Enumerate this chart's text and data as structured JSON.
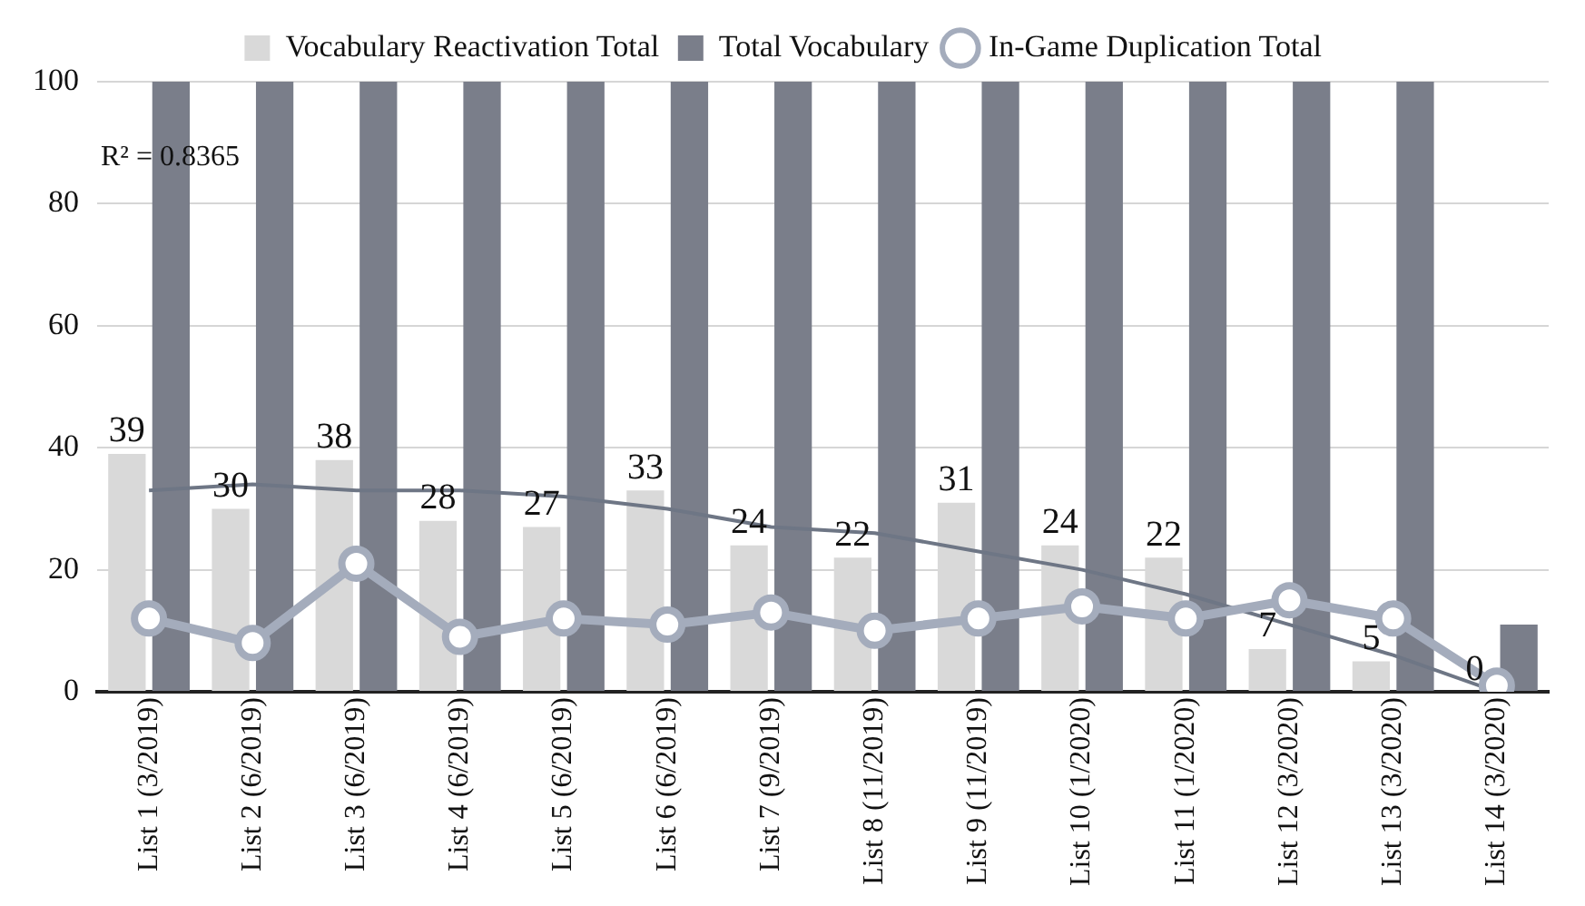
{
  "chart_data": {
    "type": "bar",
    "categories": [
      "List 1 (3/2019)",
      "List 2 (6/2019)",
      "List 3 (6/2019)",
      "List 4 (6/2019)",
      "List 5 (6/2019)",
      "List 6 (6/2019)",
      "List 7 (9/2019)",
      "List 8 (11/2019)",
      "List 9 (11/2019)",
      "List 10 (1/2020)",
      "List 11 (1/2020)",
      "List 12 (3/2020)",
      "List 13 (3/2020)",
      "List 14 (3/2020)"
    ],
    "series": [
      {
        "name": "Vocabulary Reactivation Total",
        "color": "#d9d9d9",
        "values": [
          39,
          30,
          38,
          28,
          27,
          33,
          24,
          22,
          31,
          24,
          22,
          7,
          5,
          0
        ],
        "value_labels": [
          "39",
          "30",
          "38",
          "28",
          "27",
          "33",
          "24",
          "22",
          "31",
          "24",
          "22",
          "7",
          "5",
          "0"
        ]
      },
      {
        "name": "Total Vocabulary",
        "color": "#7a7e8a",
        "values": [
          100,
          100,
          100,
          100,
          100,
          100,
          100,
          100,
          100,
          100,
          100,
          100,
          100,
          11
        ]
      },
      {
        "name": "In-Game Duplication Total",
        "type": "line",
        "color": "#a4acbc",
        "marker": "circle",
        "values": [
          12,
          8,
          21,
          9,
          12,
          11,
          13,
          10,
          12,
          14,
          12,
          15,
          12,
          1
        ]
      },
      {
        "type": "line",
        "color": "#6e7685",
        "marker": "none",
        "values": [
          33,
          34,
          33,
          33,
          32,
          30,
          27,
          26,
          23,
          20,
          16,
          11,
          6,
          0
        ]
      }
    ],
    "annotations": [
      "R² = 0.8365"
    ],
    "ylim": [
      0,
      100
    ],
    "yticks": [
      0,
      20,
      40,
      60,
      80,
      100
    ],
    "grid": "y",
    "legend": "top"
  }
}
